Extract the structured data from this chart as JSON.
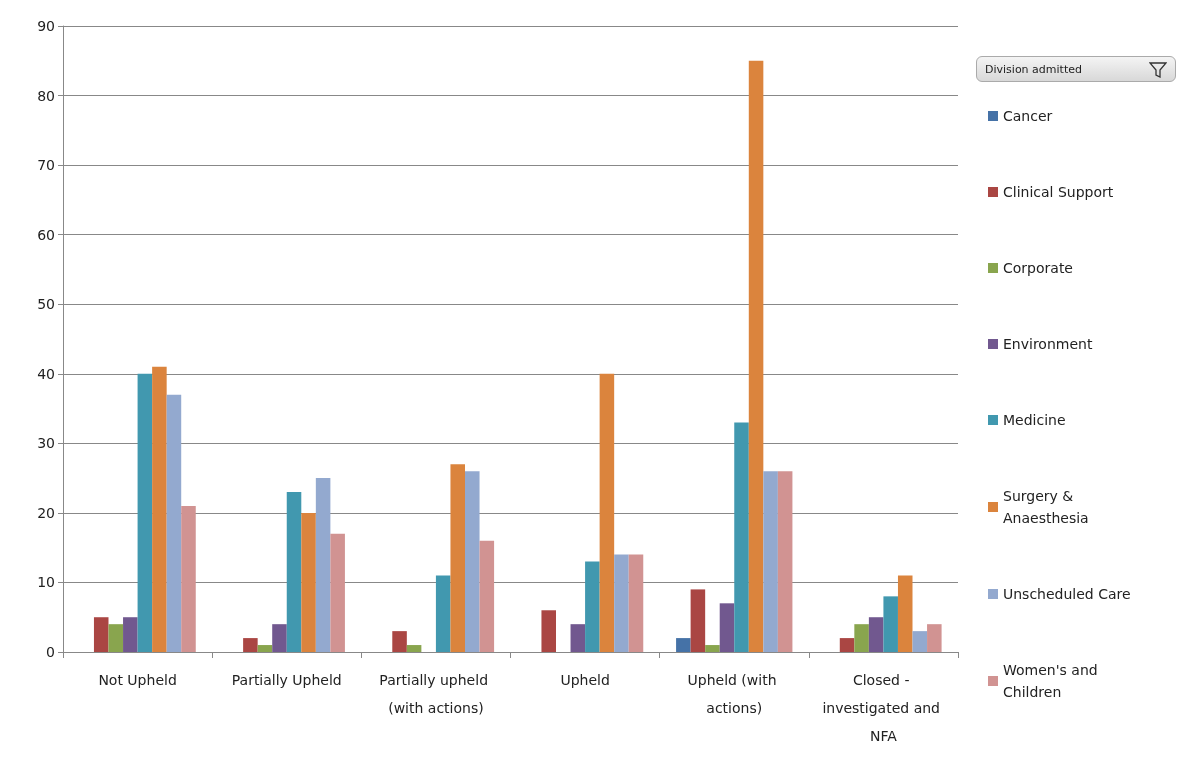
{
  "chart_data": {
    "type": "bar",
    "legend_title": "Division admitted",
    "categories": [
      "Not Upheld",
      "Partially Upheld",
      "Partially upheld (with actions)",
      "Upheld",
      "Upheld (with actions)",
      "Closed - investigated and NFA"
    ],
    "series": [
      {
        "name": "Cancer",
        "color": "#4572a7",
        "values": [
          null,
          null,
          null,
          null,
          2,
          null
        ]
      },
      {
        "name": "Clinical Support",
        "color": "#aa4643",
        "values": [
          5,
          2,
          3,
          6,
          9,
          2
        ]
      },
      {
        "name": "Corporate",
        "color": "#89a54e",
        "values": [
          4,
          1,
          1,
          null,
          1,
          4
        ]
      },
      {
        "name": "Environment",
        "color": "#71588f",
        "values": [
          5,
          4,
          null,
          4,
          7,
          5
        ]
      },
      {
        "name": "Medicine",
        "color": "#4198af",
        "values": [
          40,
          23,
          11,
          13,
          33,
          8
        ]
      },
      {
        "name": "Surgery & Anaesthesia",
        "color": "#db843d",
        "values": [
          41,
          20,
          27,
          40,
          85,
          11
        ]
      },
      {
        "name": "Unscheduled Care",
        "color": "#93a9cf",
        "values": [
          37,
          25,
          26,
          14,
          26,
          3
        ]
      },
      {
        "name": "Women's and Children",
        "color": "#d19392",
        "values": [
          21,
          17,
          16,
          14,
          26,
          4
        ]
      }
    ],
    "ylim": [
      0,
      90
    ],
    "yticks": [
      0,
      10,
      20,
      30,
      40,
      50,
      60,
      70,
      80,
      90
    ],
    "grid": "y",
    "legend": "right"
  }
}
